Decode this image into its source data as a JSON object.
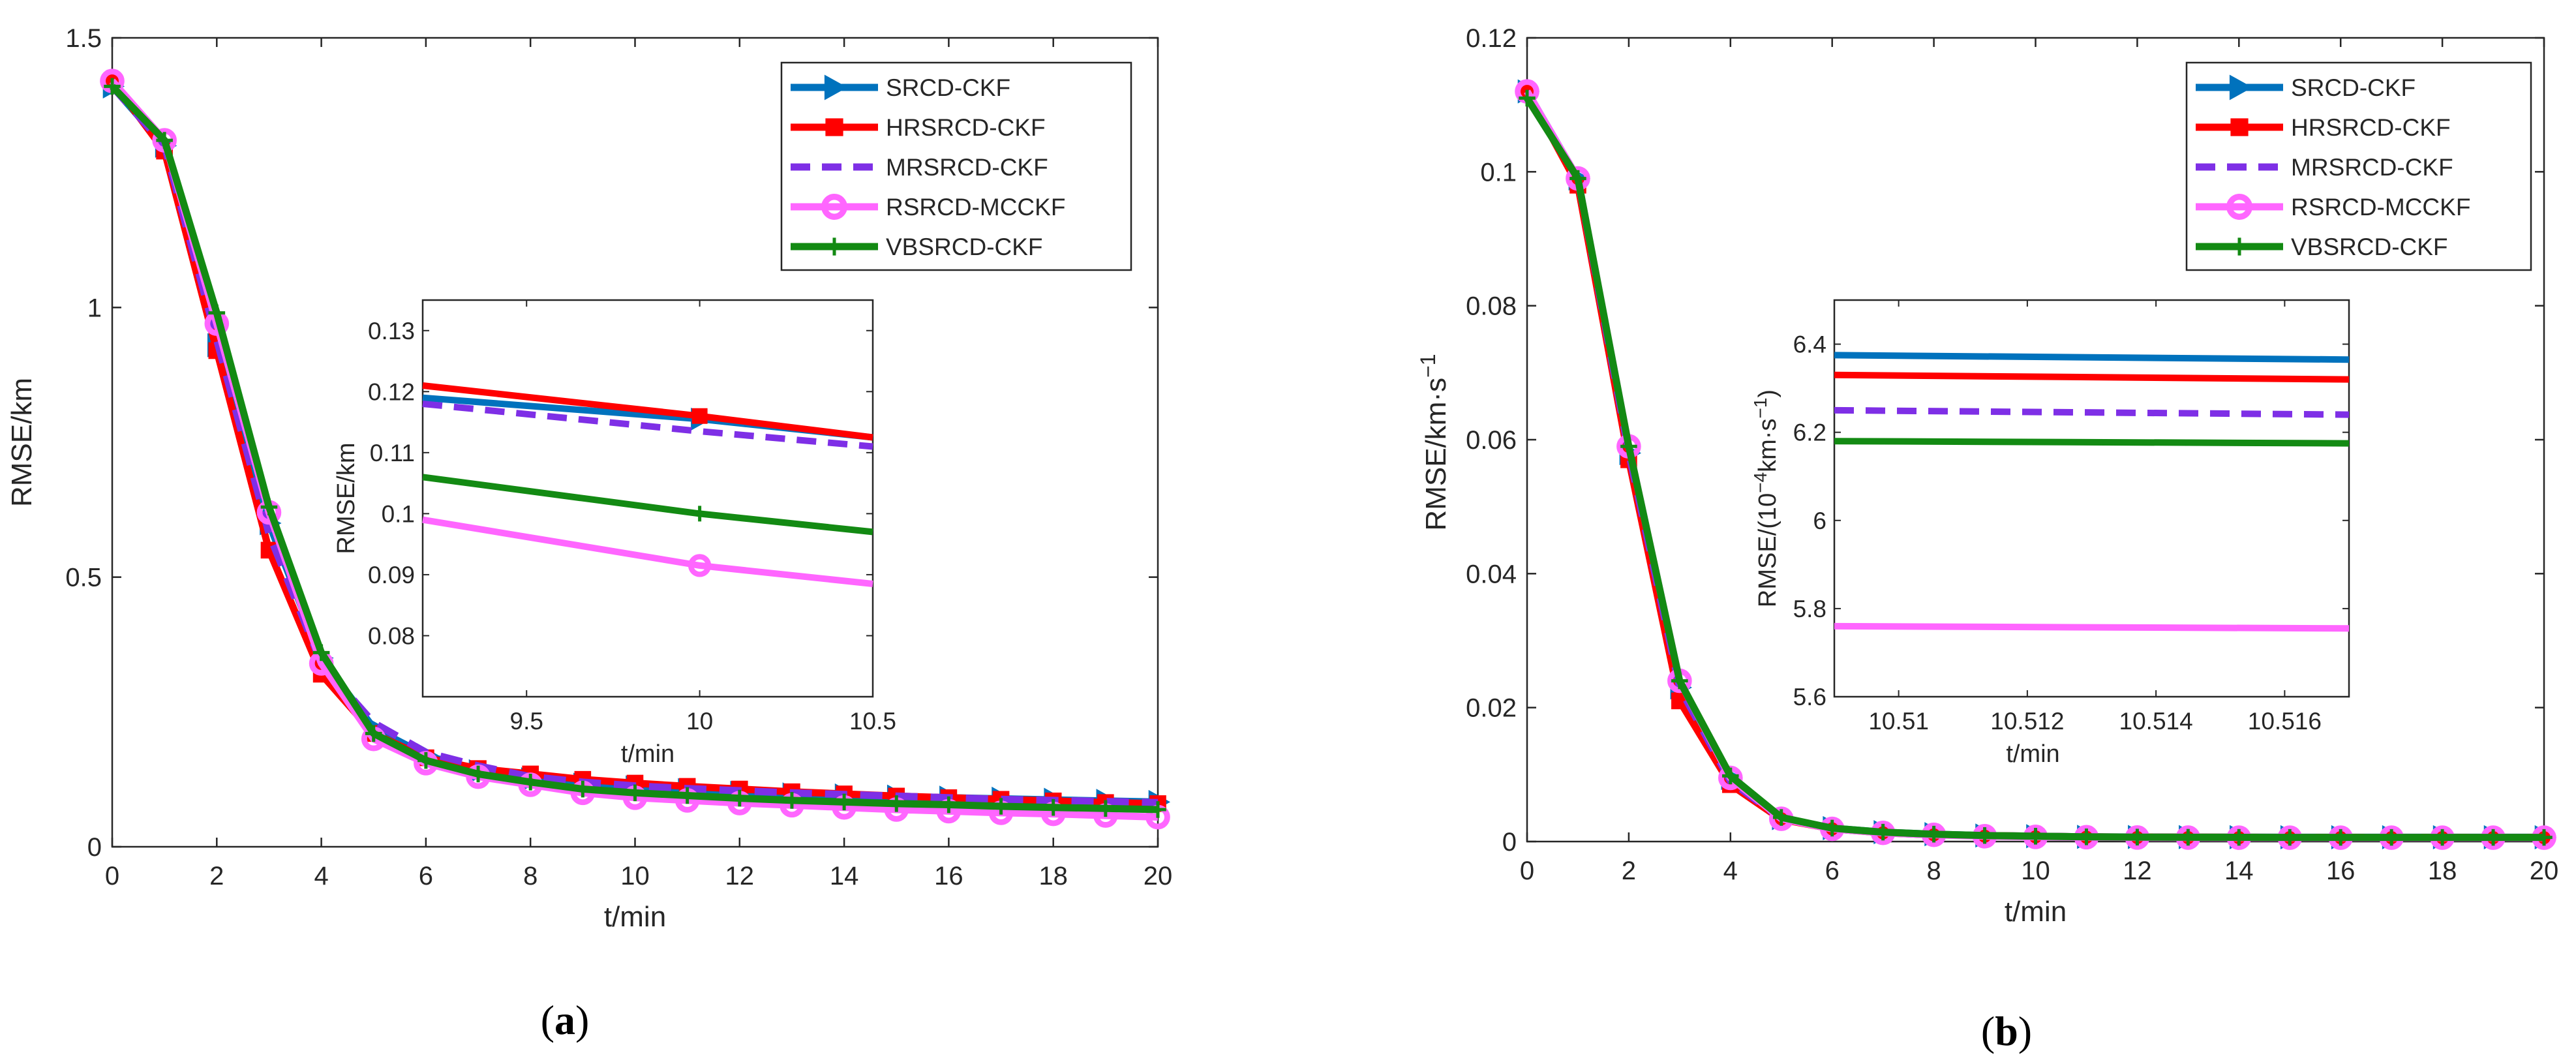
{
  "chart_data": [
    {
      "panel": "(a)",
      "panel_prefix": "(",
      "panel_letter": "a",
      "panel_suffix": ")",
      "type": "line",
      "xlabel": "t/min",
      "ylabel": "RMSE/km",
      "xlim": [
        0,
        20
      ],
      "ylim": [
        0,
        1.5
      ],
      "xticks": [
        "0",
        "2",
        "4",
        "6",
        "8",
        "10",
        "12",
        "14",
        "16",
        "18",
        "20"
      ],
      "yticks": [
        "0",
        "0.5",
        "1",
        "1.5"
      ],
      "x": [
        0,
        1,
        2,
        3,
        4,
        5,
        6,
        7,
        8,
        9,
        10,
        11,
        12,
        13,
        14,
        15,
        16,
        17,
        18,
        19,
        20
      ],
      "legend_location": "top-right",
      "series": [
        {
          "name": "SRCD-CKF",
          "color": "#0072BD",
          "marker": "triangle-right",
          "dash": "solid",
          "values": [
            1.41,
            1.3,
            0.93,
            0.6,
            0.35,
            0.22,
            0.17,
            0.14,
            0.125,
            0.115,
            0.11,
            0.105,
            0.1,
            0.097,
            0.095,
            0.093,
            0.091,
            0.089,
            0.087,
            0.085,
            0.083
          ]
        },
        {
          "name": "HRSRCD-CKF",
          "color": "#FF0000",
          "marker": "square",
          "dash": "solid",
          "values": [
            1.42,
            1.29,
            0.92,
            0.55,
            0.32,
            0.21,
            0.165,
            0.145,
            0.135,
            0.125,
            0.118,
            0.112,
            0.107,
            0.102,
            0.098,
            0.094,
            0.091,
            0.088,
            0.085,
            0.082,
            0.08
          ]
        },
        {
          "name": "MRSRCD-CKF",
          "color": "#7E2FE6",
          "marker": "none",
          "dash": "dashed",
          "values": [
            1.41,
            1.3,
            0.94,
            0.58,
            0.34,
            0.23,
            0.175,
            0.15,
            0.13,
            0.12,
            0.113,
            0.108,
            0.104,
            0.1,
            0.097,
            0.094,
            0.091,
            0.088,
            0.086,
            0.084,
            0.082
          ]
        },
        {
          "name": "RSRCD-MCCKF",
          "color": "#FF66FF",
          "marker": "circle",
          "dash": "solid",
          "values": [
            1.42,
            1.31,
            0.97,
            0.62,
            0.34,
            0.2,
            0.155,
            0.13,
            0.115,
            0.1,
            0.091,
            0.086,
            0.081,
            0.077,
            0.073,
            0.069,
            0.066,
            0.063,
            0.061,
            0.058,
            0.055
          ]
        },
        {
          "name": "VBSRCD-CKF",
          "color": "#138A13",
          "marker": "plus",
          "dash": "solid",
          "values": [
            1.41,
            1.31,
            0.99,
            0.63,
            0.36,
            0.21,
            0.16,
            0.135,
            0.12,
            0.107,
            0.1,
            0.095,
            0.09,
            0.086,
            0.083,
            0.08,
            0.078,
            0.075,
            0.073,
            0.071,
            0.069
          ]
        }
      ],
      "inset": {
        "xlabel": "t/min",
        "ylabel": "RMSE/km",
        "xlim": [
          9.2,
          10.5
        ],
        "ylim": [
          0.07,
          0.135
        ],
        "xticks": [
          "9.5",
          "10",
          "10.5"
        ],
        "yticks": [
          "0.08",
          "0.09",
          "0.1",
          "0.11",
          "0.12",
          "0.13"
        ],
        "series": [
          {
            "name": "SRCD-CKF",
            "x": [
              9.2,
              10,
              10.5
            ],
            "values": [
              0.119,
              0.1155,
              0.1125
            ],
            "marker_x": 10
          },
          {
            "name": "HRSRCD-CKF",
            "x": [
              9.2,
              10,
              10.5
            ],
            "values": [
              0.121,
              0.116,
              0.1125
            ],
            "marker_x": 10
          },
          {
            "name": "MRSRCD-CKF",
            "x": [
              9.2,
              10,
              10.5
            ],
            "values": [
              0.118,
              0.1135,
              0.111
            ],
            "marker_x": 10
          },
          {
            "name": "RSRCD-MCCKF",
            "x": [
              9.2,
              10,
              10.5
            ],
            "values": [
              0.099,
              0.0915,
              0.0885
            ],
            "marker_x": 10
          },
          {
            "name": "VBSRCD-CKF",
            "x": [
              9.2,
              10,
              10.5
            ],
            "values": [
              0.106,
              0.1,
              0.097
            ],
            "marker_x": 10
          }
        ]
      }
    },
    {
      "panel": "(b)",
      "panel_prefix": "(",
      "panel_letter": "b",
      "panel_suffix": ")",
      "type": "line",
      "xlabel": "t/min",
      "ylabel": "RMSE/km·s",
      "ylabel_sup": "−1",
      "xlim": [
        0,
        20
      ],
      "ylim": [
        0,
        0.12
      ],
      "xticks": [
        "0",
        "2",
        "4",
        "6",
        "8",
        "10",
        "12",
        "14",
        "16",
        "18",
        "20"
      ],
      "yticks": [
        "0",
        "0.02",
        "0.04",
        "0.06",
        "0.08",
        "0.1",
        "0.12"
      ],
      "x": [
        0,
        1,
        2,
        3,
        4,
        5,
        6,
        7,
        8,
        9,
        10,
        11,
        12,
        13,
        14,
        15,
        16,
        17,
        18,
        19,
        20
      ],
      "legend_location": "top-right",
      "series": [
        {
          "name": "SRCD-CKF",
          "color": "#0072BD",
          "marker": "triangle-right",
          "dash": "solid",
          "values": [
            0.112,
            0.099,
            0.058,
            0.023,
            0.0095,
            0.0035,
            0.002,
            0.0014,
            0.0011,
            0.0009,
            0.0008,
            0.0007,
            0.00068,
            0.00066,
            0.00065,
            0.00064,
            0.00064,
            0.00064,
            0.00064,
            0.00064,
            0.00064
          ]
        },
        {
          "name": "HRSRCD-CKF",
          "color": "#FF0000",
          "marker": "square",
          "dash": "solid",
          "values": [
            0.112,
            0.098,
            0.057,
            0.021,
            0.0085,
            0.0033,
            0.0019,
            0.0013,
            0.001,
            0.0009,
            0.0008,
            0.0007,
            0.00067,
            0.00065,
            0.00064,
            0.00063,
            0.00063,
            0.00063,
            0.00063,
            0.00063,
            0.00063
          ]
        },
        {
          "name": "MRSRCD-CKF",
          "color": "#7E2FE6",
          "marker": "none",
          "dash": "dashed",
          "values": [
            0.112,
            0.099,
            0.058,
            0.023,
            0.009,
            0.0034,
            0.0019,
            0.0013,
            0.001,
            0.0009,
            0.0008,
            0.0007,
            0.00066,
            0.00064,
            0.00063,
            0.00062,
            0.00062,
            0.00062,
            0.00062,
            0.00062,
            0.00062
          ]
        },
        {
          "name": "RSRCD-MCCKF",
          "color": "#FF66FF",
          "marker": "circle",
          "dash": "solid",
          "values": [
            0.112,
            0.099,
            0.059,
            0.024,
            0.0095,
            0.0034,
            0.0019,
            0.0013,
            0.001,
            0.0008,
            0.0007,
            0.00065,
            0.0006,
            0.00059,
            0.00058,
            0.00058,
            0.00058,
            0.00058,
            0.00058,
            0.00058,
            0.00058
          ]
        },
        {
          "name": "VBSRCD-CKF",
          "color": "#138A13",
          "marker": "plus",
          "dash": "solid",
          "values": [
            0.111,
            0.099,
            0.059,
            0.024,
            0.0098,
            0.0036,
            0.002,
            0.0014,
            0.0011,
            0.0009,
            0.0008,
            0.0007,
            0.00066,
            0.00064,
            0.00063,
            0.00062,
            0.00062,
            0.00062,
            0.00062,
            0.00062,
            0.00062
          ]
        }
      ],
      "inset": {
        "xlabel": "t/min",
        "ylabel_prefix": "RMSE/(10",
        "ylabel_sup": "−4",
        "ylabel_mid": "km·s",
        "ylabel_sup2": "−1",
        "ylabel_suffix": ")",
        "xlim": [
          10.509,
          10.517
        ],
        "ylim": [
          5.6,
          6.5
        ],
        "xticks": [
          "10.51",
          "10.512",
          "10.514",
          "10.516"
        ],
        "xtick_values": [
          10.51,
          10.512,
          10.514,
          10.516
        ],
        "yticks": [
          "5.6",
          "5.8",
          "6",
          "6.2",
          "6.4"
        ],
        "series": [
          {
            "name": "SRCD-CKF",
            "x": [
              10.509,
              10.517
            ],
            "values": [
              6.375,
              6.365
            ]
          },
          {
            "name": "HRSRCD-CKF",
            "x": [
              10.509,
              10.517
            ],
            "values": [
              6.33,
              6.32
            ]
          },
          {
            "name": "MRSRCD-CKF",
            "x": [
              10.509,
              10.517
            ],
            "values": [
              6.25,
              6.24
            ]
          },
          {
            "name": "RSRCD-MCCKF",
            "x": [
              10.509,
              10.517
            ],
            "values": [
              5.76,
              5.755
            ]
          },
          {
            "name": "VBSRCD-CKF",
            "x": [
              10.509,
              10.517
            ],
            "values": [
              6.18,
              6.175
            ]
          }
        ]
      }
    }
  ]
}
